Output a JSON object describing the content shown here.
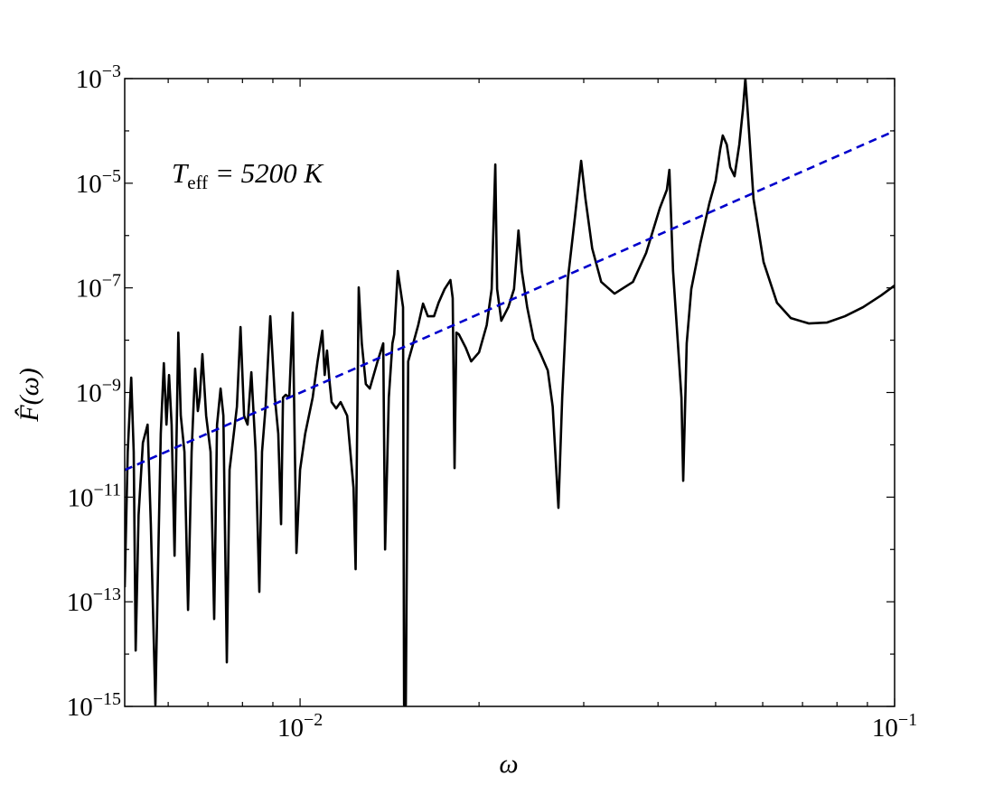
{
  "chart_data": {
    "type": "line",
    "xlabel": "ω",
    "ylabel": "F̂(ω)",
    "annotation": {
      "symbol": "T",
      "subscript": "eff",
      "text": " = 5200 K"
    },
    "xscale": "log",
    "yscale": "log",
    "xlim": [
      0.00507,
      0.1
    ],
    "ylim": [
      1e-15,
      0.001
    ],
    "xticks": [
      {
        "value": 0.01,
        "label": "10−2"
      },
      {
        "value": 0.1,
        "label": "10−1"
      }
    ],
    "xminor_ticks": [
      0.006,
      0.007,
      0.008,
      0.009,
      0.02,
      0.03,
      0.04,
      0.05,
      0.06,
      0.07,
      0.08,
      0.09
    ],
    "yticks": [
      {
        "value": 1e-15,
        "label": "10−15"
      },
      {
        "value": 1e-13,
        "label": "10−13"
      },
      {
        "value": 1e-11,
        "label": "10−11"
      },
      {
        "value": 1e-09,
        "label": "10−9"
      },
      {
        "value": 1e-07,
        "label": "10−7"
      },
      {
        "value": 1e-05,
        "label": "10−5"
      },
      {
        "value": 0.001,
        "label": "10−3"
      }
    ],
    "yminor_ticks": [
      1e-14,
      1e-12,
      1e-10,
      1e-08,
      1e-06,
      0.0001
    ],
    "series": [
      {
        "color": "#000000",
        "linestyle": "solid",
        "x": [
          0.00507,
          0.00513,
          0.0052,
          0.00525,
          0.00529,
          0.00535,
          0.00544,
          0.00554,
          0.00561,
          0.00571,
          0.00578,
          0.00583,
          0.0059,
          0.00596,
          0.00602,
          0.00608,
          0.00615,
          0.00624,
          0.0063,
          0.00639,
          0.00648,
          0.00657,
          0.00666,
          0.00673,
          0.00678,
          0.00685,
          0.00695,
          0.00707,
          0.00717,
          0.00725,
          0.00735,
          0.00743,
          0.00753,
          0.00761,
          0.00772,
          0.00783,
          0.00794,
          0.00805,
          0.00816,
          0.00828,
          0.00842,
          0.00854,
          0.00863,
          0.00875,
          0.00891,
          0.00907,
          0.00919,
          0.00929,
          0.00936,
          0.00946,
          0.00959,
          0.00972,
          0.00986,
          0.01,
          0.0102,
          0.0105,
          0.0107,
          0.0109,
          0.011,
          0.0111,
          0.0112,
          0.0113,
          0.0115,
          0.0117,
          0.012,
          0.0123,
          0.0124,
          0.01255,
          0.0127,
          0.0129,
          0.0131,
          0.0135,
          0.0138,
          0.0139,
          0.0141,
          0.0143,
          0.0144,
          0.0146,
          0.0149,
          0.01496,
          0.01506,
          0.0152,
          0.0155,
          0.0158,
          0.0161,
          0.0164,
          0.0168,
          0.0171,
          0.0175,
          0.0179,
          0.01806,
          0.01819,
          0.01832,
          0.0185,
          0.019,
          0.0194,
          0.02,
          0.0206,
          0.021,
          0.0213,
          0.02145,
          0.0218,
          0.0224,
          0.0229,
          0.0233,
          0.0236,
          0.0241,
          0.0247,
          0.0254,
          0.0261,
          0.0266,
          0.0272,
          0.0276,
          0.0282,
          0.029,
          0.0297,
          0.0302,
          0.031,
          0.0321,
          0.0338,
          0.0363,
          0.0382,
          0.0403,
          0.0414,
          0.0418,
          0.0424,
          0.0432,
          0.0438,
          0.0441,
          0.0447,
          0.0455,
          0.0471,
          0.0488,
          0.05,
          0.0509,
          0.0514,
          0.0522,
          0.0529,
          0.0538,
          0.0548,
          0.0556,
          0.0561,
          0.0567,
          0.0579,
          0.0602,
          0.0634,
          0.0669,
          0.0717,
          0.0769,
          0.0825,
          0.0885,
          0.0949,
          0.1
        ],
        "values": [
          1.89e-13,
          7.36e-11,
          1.92e-09,
          7.36e-11,
          1.17e-14,
          4.55e-12,
          1.1e-10,
          2.43e-10,
          3.05e-12,
          1.07e-15,
          1.38e-12,
          1.63e-10,
          3.63e-09,
          2.43e-10,
          2.16e-09,
          2.43e-10,
          7.6e-13,
          1.4e-08,
          3.61e-10,
          7.36e-11,
          7e-14,
          7.36e-11,
          2.86e-09,
          4.41e-10,
          8e-10,
          5.4e-09,
          3.61e-10,
          7.36e-11,
          4.7e-14,
          2.43e-10,
          1.19e-09,
          3.61e-10,
          6.97e-15,
          3.33e-11,
          1.34e-10,
          5.38e-10,
          1.78e-08,
          3.61e-10,
          2.43e-10,
          2.44e-09,
          7.36e-11,
          1.55e-13,
          7.36e-11,
          5.38e-10,
          2.87e-08,
          8e-10,
          1.63e-10,
          3.05e-12,
          8e-10,
          9.02e-10,
          8e-10,
          3.37e-08,
          8.57e-13,
          3.33e-11,
          1.63e-10,
          8e-10,
          3.93e-09,
          1.52e-08,
          2.16e-09,
          6.33e-09,
          1.77e-09,
          6.56e-10,
          4.97e-10,
          6.56e-10,
          3.61e-10,
          1.5e-11,
          4.19e-13,
          1.02e-07,
          8.71e-09,
          1.45e-09,
          1.19e-09,
          3.93e-09,
          8.71e-09,
          1e-12,
          8e-10,
          8.71e-09,
          1.29e-08,
          2.1e-07,
          4.27e-08,
          1.07e-15,
          1.07e-15,
          3.93e-09,
          8.71e-09,
          1.93e-08,
          5e-08,
          2.87e-08,
          2.87e-08,
          5.21e-08,
          9.46e-08,
          1.41e-07,
          6.35e-08,
          3.6e-11,
          1.4e-08,
          1.29e-08,
          7.13e-09,
          3.93e-09,
          5.85e-09,
          1.93e-08,
          9.46e-08,
          2.29e-05,
          9.46e-08,
          2.35e-08,
          4.27e-08,
          9.46e-08,
          1.25e-06,
          2.1e-07,
          4.27e-08,
          1.06e-08,
          5.4e-09,
          2.64e-09,
          5.38e-10,
          6.25e-12,
          8e-10,
          1.41e-07,
          2.28e-06,
          2.68e-05,
          5.05e-06,
          5.66e-07,
          1.3e-07,
          7.75e-08,
          1.3e-07,
          4.65e-07,
          3.39e-06,
          7.52e-06,
          1.8e-05,
          2.1e-07,
          8.71e-09,
          8e-10,
          2.06e-11,
          8.71e-09,
          9.46e-08,
          6.9e-07,
          4.14e-06,
          1.12e-05,
          4.5e-05,
          8.17e-05,
          5.48e-05,
          2.03e-05,
          1.36e-05,
          5.48e-05,
          0.000269,
          0.001,
          0.000181,
          5.05e-06,
          3.12e-07,
          5.21e-08,
          2.65e-08,
          2.09e-08,
          2.17e-08,
          2.87e-08,
          4.27e-08,
          7.16e-08,
          1.11e-07
        ]
      },
      {
        "color": "#0000cc",
        "linestyle": "dashed",
        "x": [
          0.00507,
          0.1
        ],
        "values": [
          3.3e-11,
          0.0001
        ]
      }
    ]
  }
}
